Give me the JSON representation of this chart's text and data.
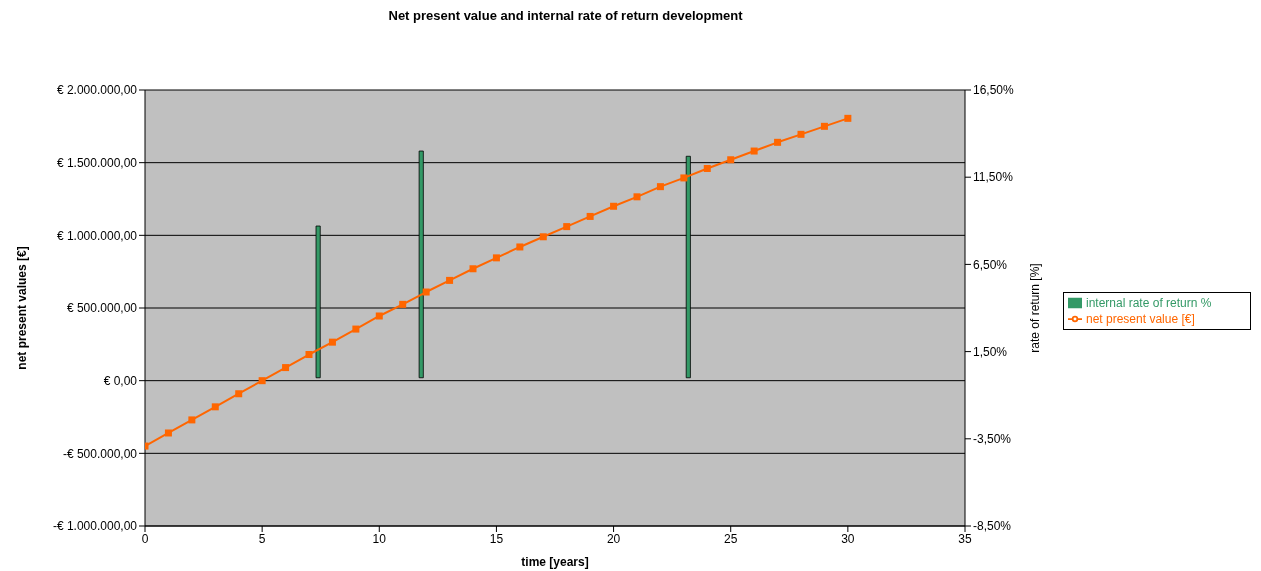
{
  "chart_data": {
    "type": "line",
    "title": "Net present value and internal rate of return development",
    "xlabel": "time [years]",
    "ylabel": "net present values [€]",
    "y2label": "rate of return [%]",
    "xlim": [
      0,
      35
    ],
    "xticks": [
      0,
      5,
      10,
      15,
      20,
      25,
      30,
      35
    ],
    "ylim": [
      -1000000,
      2000000
    ],
    "yticks": [
      {
        "value": -1000000,
        "label": "-€ 1.000.000,00"
      },
      {
        "value": -500000,
        "label": "-€ 500.000,00"
      },
      {
        "value": 0,
        "label": "€ 0,00"
      },
      {
        "value": 500000,
        "label": "€ 500.000,00"
      },
      {
        "value": 1000000,
        "label": "€ 1.000.000,00"
      },
      {
        "value": 1500000,
        "label": "€ 1.500.000,00"
      },
      {
        "value": 2000000,
        "label": "€ 2.000.000,00"
      }
    ],
    "y2lim": [
      -8.5,
      16.5
    ],
    "y2ticks": [
      {
        "value": -8.5,
        "label": "-8,50%"
      },
      {
        "value": -3.5,
        "label": "-3,50%"
      },
      {
        "value": 1.5,
        "label": "1,50%"
      },
      {
        "value": 6.5,
        "label": "6,50%"
      },
      {
        "value": 11.5,
        "label": "11,50%"
      },
      {
        "value": 16.5,
        "label": "16,50%"
      }
    ],
    "grid": "y",
    "legend": "right",
    "marker": "square",
    "series": [
      {
        "name": "internal rate of return %",
        "type": "bar",
        "axis": "y2",
        "color": "#339966",
        "x": [
          7.4,
          11.8,
          23.2
        ],
        "values": [
          8.7,
          13.0,
          12.7
        ]
      },
      {
        "name": "net present value [€]",
        "color": "#ff6600",
        "x": [
          0,
          1,
          2,
          3,
          4,
          5,
          6,
          7,
          8,
          9,
          10,
          11,
          12,
          13,
          14,
          15,
          16,
          17,
          18,
          19,
          20,
          21,
          22,
          23,
          24,
          25,
          26,
          27,
          28,
          29,
          30
        ],
        "values": [
          -450000,
          -360000,
          -270000,
          -180000,
          -90000,
          0,
          90000,
          180000,
          265000,
          355000,
          445000,
          525000,
          610000,
          690000,
          770000,
          845000,
          920000,
          990000,
          1060000,
          1130000,
          1200000,
          1265000,
          1335000,
          1395000,
          1460000,
          1520000,
          1580000,
          1640000,
          1695000,
          1750000,
          1805000
        ]
      }
    ]
  }
}
